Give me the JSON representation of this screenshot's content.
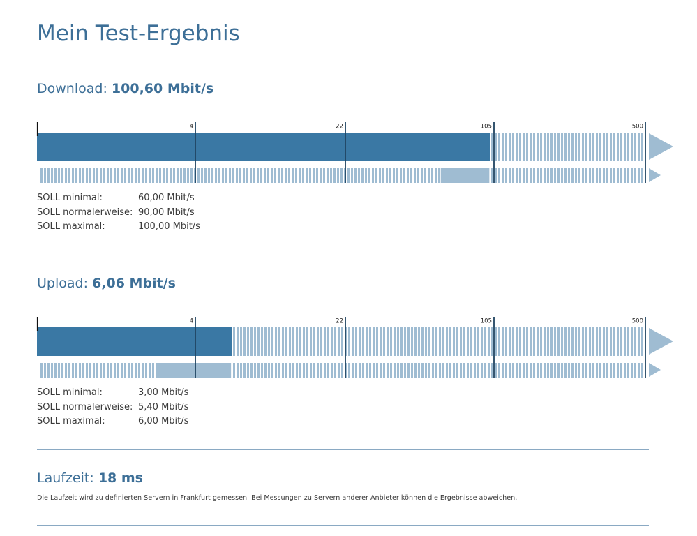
{
  "page": {
    "title": "Mein Test-Ergebnis"
  },
  "colors": {
    "brand": "#3d6f97",
    "bar_fill": "#3a78a4",
    "bar_light": "#9fbcd2",
    "divider": "#8aa9c3"
  },
  "scale": {
    "ticks": [
      "4",
      "22",
      "105",
      "500"
    ],
    "tick_values": [
      4,
      22,
      105,
      500
    ]
  },
  "download": {
    "label": "Download:",
    "value_text": "100,60 Mbit/s",
    "measured_mbit": 100.6,
    "range_min_mbit": 60,
    "range_max_mbit": 100,
    "soll": [
      {
        "label": "SOLL minimal:",
        "value": "60,00 Mbit/s"
      },
      {
        "label": "SOLL normalerweise:",
        "value": "90,00 Mbit/s"
      },
      {
        "label": "SOLL maximal:",
        "value": "100,00 Mbit/s"
      }
    ]
  },
  "upload": {
    "label": "Upload:",
    "value_text": "6,06 Mbit/s",
    "measured_mbit": 6.06,
    "range_min_mbit": 3,
    "range_max_mbit": 6,
    "soll": [
      {
        "label": "SOLL minimal:",
        "value": "3,00 Mbit/s"
      },
      {
        "label": "SOLL normalerweise:",
        "value": "5,40 Mbit/s"
      },
      {
        "label": "SOLL maximal:",
        "value": "6,00 Mbit/s"
      }
    ]
  },
  "latency": {
    "label": "Laufzeit:",
    "value_text": "18 ms",
    "note": "Die Laufzeit wird zu definierten Servern in Frankfurt gemessen. Bei Messungen zu Servern anderer Anbieter können die Ergebnisse abweichen."
  }
}
